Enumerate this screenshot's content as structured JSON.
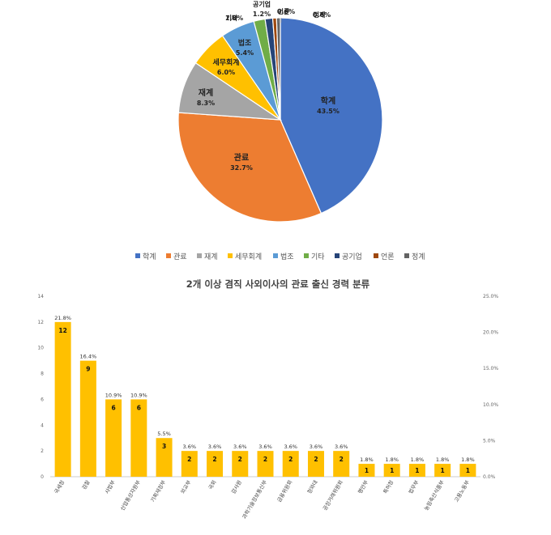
{
  "chart_data": [
    {
      "type": "pie",
      "slices": [
        {
          "label": "학계",
          "pct_label": "43.5%",
          "value": 43.5,
          "color": "#4472C4"
        },
        {
          "label": "관료",
          "pct_label": "32.7%",
          "value": 32.7,
          "color": "#ED7D31"
        },
        {
          "label": "재계",
          "pct_label": "8.3%",
          "value": 8.3,
          "color": "#A5A5A5"
        },
        {
          "label": "세무회계",
          "pct_label": "6.0%",
          "value": 6.0,
          "color": "#FFC000"
        },
        {
          "label": "법조",
          "pct_label": "5.4%",
          "value": 5.4,
          "color": "#5B9BD5"
        },
        {
          "label": "기타",
          "pct_label": "1.8%",
          "value": 1.8,
          "color": "#70AD47"
        },
        {
          "label": "공기업",
          "pct_label": "1.2%",
          "value": 1.2,
          "color": "#264478"
        },
        {
          "label": "언론",
          "pct_label": "0.6%",
          "value": 0.6,
          "color": "#9E480E"
        },
        {
          "label": "정계",
          "pct_label": "0.6%",
          "value": 0.6,
          "color": "#636363"
        }
      ],
      "legend_position": "bottom"
    },
    {
      "type": "bar",
      "title": "2개 이상 겸직 사외이사의 관료 출신 경력 분류",
      "categories": [
        "국세청",
        "검찰",
        "사법부",
        "산업통상자원부",
        "기획재정부",
        "외교부",
        "국회",
        "감사원",
        "과학기술정보통신부",
        "금융위원회",
        "청와대",
        "공정거래위원회",
        "행안부",
        "특허청",
        "법무부",
        "농림축산식품부",
        "고용노동부"
      ],
      "values": [
        12,
        9,
        6,
        6,
        3,
        2,
        2,
        2,
        2,
        2,
        2,
        2,
        1,
        1,
        1,
        1,
        1
      ],
      "pct_labels": [
        "21.8%",
        "16.4%",
        "10.9%",
        "10.9%",
        "5.5%",
        "3.6%",
        "3.6%",
        "3.6%",
        "3.6%",
        "3.6%",
        "3.6%",
        "3.6%",
        "1.8%",
        "1.8%",
        "1.8%",
        "1.8%",
        "1.8%"
      ],
      "ylim": [
        0,
        14
      ],
      "yticks": [
        "0",
        "2",
        "4",
        "6",
        "8",
        "10",
        "12",
        "14"
      ],
      "y2lim": [
        0,
        25
      ],
      "y2ticks": [
        "0.0%",
        "5.0%",
        "10.0%",
        "15.0%",
        "20.0%",
        "25.0%"
      ],
      "bar_color": "#FFC000",
      "grid": false
    }
  ]
}
